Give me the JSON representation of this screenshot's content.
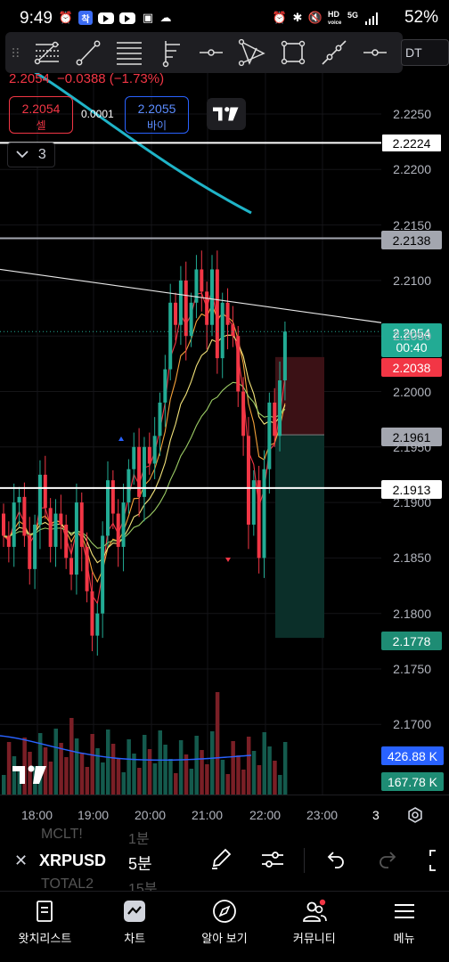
{
  "status_bar": {
    "time": "9:49",
    "battery": "52%",
    "network": "5G",
    "hd_label": "HD"
  },
  "toolbar": {
    "tools": [
      "drag-handle",
      "fib-retracement-tool",
      "trend-line-tool",
      "parallel-channel-tool",
      "pitchfork-tool",
      "horizontal-ray-tool",
      "triangle-pattern-tool",
      "rectangle-tool",
      "ray-tool",
      "horizontal-line-tool"
    ]
  },
  "symbol_tail": "DT",
  "price": {
    "last": "2.2054",
    "change": "−0.0388 (−1.73%)",
    "color_down": "#f23645",
    "color_up": "#22ab94"
  },
  "trade": {
    "sell_price": "2.2054",
    "sell_label": "셀",
    "spread": "0.0001",
    "buy_price": "2.2055",
    "buy_label": "바이"
  },
  "collapse_count": "3",
  "price_axis": {
    "ticks": [
      "2.2250",
      "2.2200",
      "2.2150",
      "2.2100",
      "2.2050",
      "2.2000",
      "2.1950",
      "2.1900",
      "2.1850",
      "2.1800",
      "2.1750",
      "2.1700"
    ],
    "labels": {
      "h_line_1": "2.2224",
      "h_line_2": "2.2138",
      "last_price": "2.2054",
      "countdown": "00:40",
      "bid": "2.2038",
      "entry": "2.1961",
      "h_line_3": "2.1913",
      "target": "2.1778",
      "volume_ma": "426.88 K",
      "volume": "167.78 K"
    }
  },
  "time_axis": {
    "ticks": [
      "18:00",
      "19:00",
      "20:00",
      "21:00",
      "22:00",
      "23:00"
    ],
    "countdown_marker": "3"
  },
  "info_bar": {
    "symbol": "XRPUSD",
    "interval": "5분",
    "ghost_top": "MCLT!",
    "ghost_top_interval": "1분",
    "ghost_bottom": "TOTAL2",
    "ghost_bottom_interval": "15분"
  },
  "nav": {
    "watchlist": "왓치리스트",
    "chart": "차트",
    "explore": "알아 보기",
    "community": "커뮤니티",
    "menu": "메뉴"
  },
  "tv_logo": "17",
  "chart_data": {
    "type": "candlestick",
    "x_ticks": [
      "18:00",
      "19:00",
      "20:00",
      "21:00",
      "22:00",
      "23:00"
    ],
    "ylim": [
      2.1655,
      2.2295
    ],
    "horizontal_lines": [
      2.2224,
      2.2138,
      2.1913
    ],
    "trend_line": {
      "from": 2.211,
      "to": 2.2062
    },
    "position": {
      "entry": 2.1961,
      "stop": 2.2031,
      "target": 2.1778
    },
    "last_price": 2.2054
  }
}
